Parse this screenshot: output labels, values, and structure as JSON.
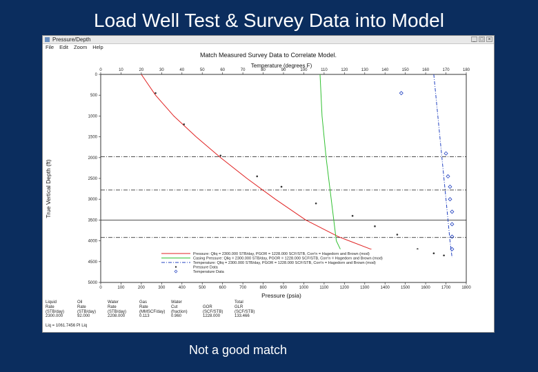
{
  "slide": {
    "title": "Load Well Test & Survey Data into Model",
    "caption": "Not a good match"
  },
  "window": {
    "title": "Pressure/Depth",
    "menu": [
      "File",
      "Edit",
      "Zoom",
      "Help"
    ],
    "buttons": {
      "minimize": "_",
      "maximize": "□",
      "close": "×"
    }
  },
  "chart_data": {
    "type": "line",
    "title": "Match Measured Survey Data to Correlate Model.",
    "top_axis": {
      "label": "Temperature (degrees F)",
      "ticks": [
        0,
        10,
        20,
        30,
        40,
        50,
        60,
        70,
        80,
        90,
        100,
        110,
        120,
        130,
        140,
        150,
        160,
        170,
        180
      ],
      "range": [
        0,
        180
      ]
    },
    "bottom_axis": {
      "label": "Pressure (psia)",
      "ticks": [
        0,
        100,
        200,
        300,
        400,
        500,
        600,
        700,
        800,
        900,
        1000,
        1100,
        1200,
        1300,
        1400,
        1500,
        1600,
        1700,
        1800
      ],
      "range": [
        0,
        1800
      ]
    },
    "y_axis": {
      "label": "True Vertical Depth (ft)",
      "ticks": [
        0,
        500,
        1000,
        1500,
        2000,
        2500,
        3000,
        3500,
        4000,
        4500,
        5000
      ],
      "range": [
        0,
        5000
      ],
      "inverted": true
    },
    "reference_lines": [
      {
        "depth": 1980,
        "style": "dash-dot"
      },
      {
        "depth": 2780,
        "style": "dash-dot"
      },
      {
        "depth": 3500,
        "style": "solid"
      },
      {
        "depth": 3920,
        "style": "dash-dot"
      }
    ],
    "series": [
      {
        "name": "Pressure: Qliq = 2300.000 STB/day, PGOR = 1228.000 SCF/STB, Corr'n = Hagedorn and Brown (mod)",
        "axis": "pressure",
        "color": "#e02020",
        "style": "solid",
        "points": [
          [
            200,
            0
          ],
          [
            270,
            500
          ],
          [
            360,
            1000
          ],
          [
            470,
            1500
          ],
          [
            590,
            2000
          ],
          [
            720,
            2500
          ],
          [
            860,
            3000
          ],
          [
            1010,
            3500
          ],
          [
            1170,
            3900
          ],
          [
            1330,
            4200
          ],
          [
            1450,
            4450
          ]
        ]
      },
      {
        "name": "Casing Pressure: Qliq = 2300.000 STB/day, PGOR = 1228.000 SCF/STB, Corr'n = Hagedorn and Brown (mod)",
        "axis": "pressure",
        "color": "#30c030",
        "style": "solid",
        "points": [
          [
            1080,
            0
          ],
          [
            1090,
            1000
          ],
          [
            1110,
            2000
          ],
          [
            1135,
            3000
          ],
          [
            1160,
            4000
          ],
          [
            1180,
            4200
          ]
        ]
      },
      {
        "name": "Temperature: Qliq = 2300.000 STB/day, PGOR = 1228.000 SCF/STB, Corr'n = Hagedorn and Brown (mod)",
        "axis": "temperature",
        "color": "#2040c0",
        "style": "dash-dot",
        "points": [
          [
            164,
            0
          ],
          [
            166,
            1000
          ],
          [
            168,
            2000
          ],
          [
            170,
            3000
          ],
          [
            172,
            4000
          ],
          [
            173,
            4400
          ]
        ]
      }
    ],
    "measured_pressure": [
      [
        270,
        450
      ],
      [
        410,
        1200
      ],
      [
        590,
        1950
      ],
      [
        770,
        2450
      ],
      [
        890,
        2700
      ],
      [
        1060,
        3100
      ],
      [
        1240,
        3400
      ],
      [
        1350,
        3650
      ],
      [
        1460,
        3850
      ],
      [
        1560,
        4200
      ],
      [
        1640,
        4300
      ],
      [
        1690,
        4350
      ]
    ],
    "measured_temperature": [
      [
        148,
        450
      ],
      [
        170,
        1900
      ],
      [
        171,
        2450
      ],
      [
        172,
        2700
      ],
      [
        172,
        3000
      ],
      [
        173,
        3300
      ],
      [
        173,
        3600
      ],
      [
        173,
        3900
      ],
      [
        173,
        4200
      ]
    ],
    "legend_entries": [
      "Pressure Data",
      "Temperature Data"
    ],
    "legend_position": "bottom-right"
  },
  "results": {
    "columns": [
      {
        "header": [
          "Liquid",
          "Rate",
          "(STB/day)"
        ],
        "value": "2300.000"
      },
      {
        "header": [
          "Oil",
          "Rate",
          "(STB/day)"
        ],
        "value": "92.000"
      },
      {
        "header": [
          "Water",
          "Rate",
          "(STB/day)"
        ],
        "value": "2208.000"
      },
      {
        "header": [
          "Gas",
          "Rate",
          "(MMSCF/day)"
        ],
        "value": "0.113"
      },
      {
        "header": [
          "Water",
          "Cut",
          "(fraction)"
        ],
        "value": "0.960"
      },
      {
        "header": [
          "",
          "GOR",
          "(SCF/STB)"
        ],
        "value": "1228.000"
      },
      {
        "header": [
          "Total",
          "GLR",
          "(SCF/STB)"
        ],
        "value": "133.466"
      }
    ],
    "equation": "Liq = 1061.7456 PI Liq"
  }
}
